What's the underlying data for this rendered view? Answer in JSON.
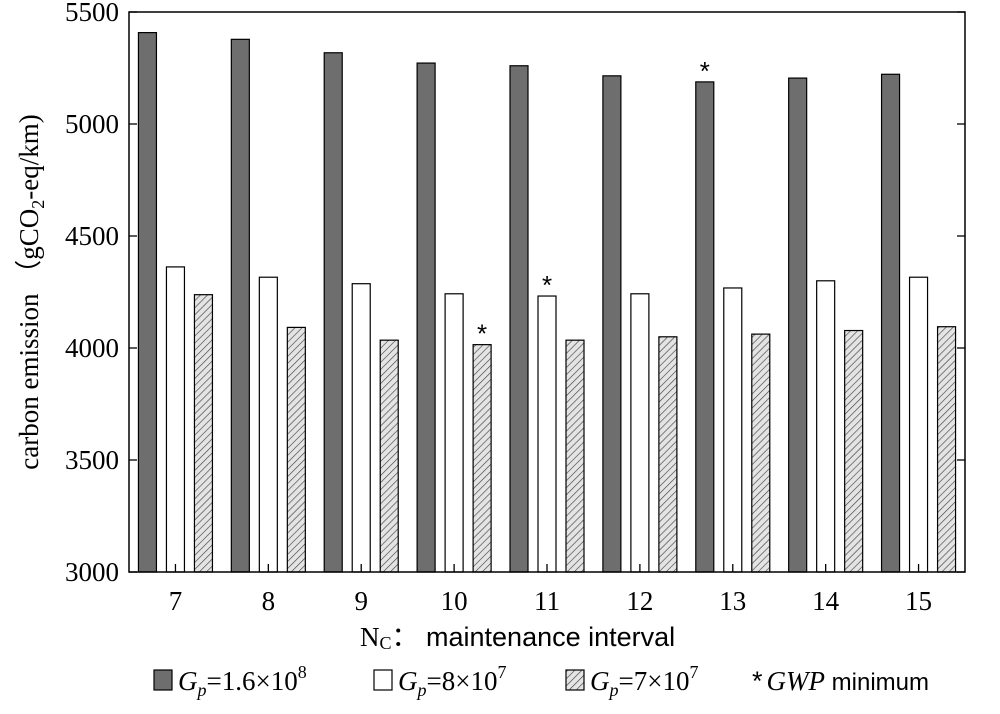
{
  "chart_data": {
    "type": "bar",
    "ylabel_text": "carbon emission",
    "ylabel_unit_prefix": "（gCO",
    "ylabel_unit_sub": "2",
    "ylabel_unit_suffix": "-eq/km)",
    "xlabel_main": "N",
    "xlabel_sub": "C",
    "xlabel_rest": "：  maintenance interval",
    "ylim": [
      3000,
      5500
    ],
    "yticks": [
      3000,
      3500,
      4000,
      4500,
      5000,
      5500
    ],
    "categories": [
      "7",
      "8",
      "9",
      "10",
      "11",
      "12",
      "13",
      "14",
      "15"
    ],
    "series": [
      {
        "name": "G_p=1.6×10^8",
        "legend_var": "G",
        "legend_sub": "p",
        "legend_val": "=1.6×10",
        "legend_exp": "8",
        "fill": "#6e6e6e",
        "pattern": "solid",
        "values": [
          5408,
          5378,
          5318,
          5272,
          5260,
          5215,
          5188,
          5205,
          5222
        ]
      },
      {
        "name": "G_p=8×10^7",
        "legend_var": "G",
        "legend_sub": "p",
        "legend_val": "=8×10",
        "legend_exp": "7",
        "fill": "#ffffff",
        "pattern": "solid",
        "values": [
          4362,
          4316,
          4287,
          4242,
          4232,
          4242,
          4268,
          4300,
          4316
        ]
      },
      {
        "name": "G_p=7×10^7",
        "legend_var": "G",
        "legend_sub": "p",
        "legend_val": "=7×10",
        "legend_exp": "7",
        "fill": "#d9d9d9",
        "pattern": "hatch",
        "values": [
          4238,
          4092,
          4035,
          4015,
          4035,
          4050,
          4062,
          4078,
          4095
        ]
      }
    ],
    "markers": [
      {
        "category": "10",
        "series": 2,
        "symbol": "*"
      },
      {
        "category": "11",
        "series": 1,
        "symbol": "*"
      },
      {
        "category": "13",
        "series": 0,
        "symbol": "*"
      }
    ],
    "marker_legend": {
      "symbol": "*",
      "var": "GWP",
      "text": " minimum"
    }
  }
}
